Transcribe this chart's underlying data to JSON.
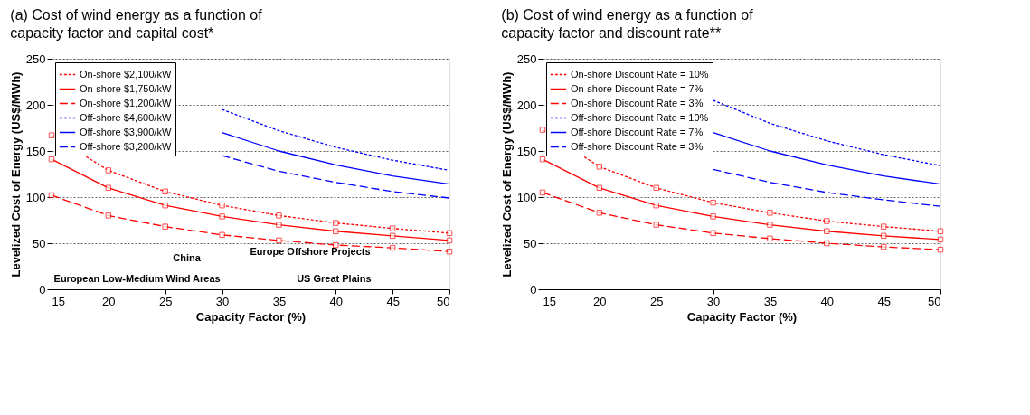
{
  "chart_data": [
    {
      "type": "line",
      "title": "(a) Cost of wind energy as a function of\ncapacity factor and capital cost*",
      "xlabel": "Capacity Factor (%)",
      "ylabel": "Levelized Cost of Energy (US$/MWh)",
      "xlim": [
        15,
        50
      ],
      "xticks": [
        15,
        20,
        25,
        30,
        35,
        40,
        45,
        50
      ],
      "ylim": [
        0,
        250
      ],
      "yticks": [
        0,
        50,
        100,
        150,
        200,
        250
      ],
      "grid": "y",
      "legend": "top left",
      "series": [
        {
          "name": "On-shore $2,100/kW",
          "color": "#ff0000",
          "line_style": "dotted",
          "marker": "square",
          "x": [
            15,
            20,
            25,
            30,
            35,
            40,
            45,
            50
          ],
          "values": [
            167,
            129,
            106,
            91,
            80,
            72,
            66,
            61
          ]
        },
        {
          "name": "On-shore $1,750/kW",
          "color": "#ff0000",
          "line_style": "solid",
          "marker": "square",
          "x": [
            15,
            20,
            25,
            30,
            35,
            40,
            45,
            50
          ],
          "values": [
            141,
            110,
            91,
            79,
            70,
            63,
            58,
            53
          ]
        },
        {
          "name": "On-shore $1,200/kW",
          "color": "#ff0000",
          "line_style": "dashed",
          "marker": "square",
          "x": [
            15,
            20,
            25,
            30,
            35,
            40,
            45,
            50
          ],
          "values": [
            102,
            80,
            68,
            59,
            53,
            48,
            45,
            41
          ]
        },
        {
          "name": "Off-shore $4,600/kW",
          "color": "#0000ff",
          "line_style": "dotted",
          "marker": "none",
          "x": [
            30,
            35,
            40,
            45,
            50
          ],
          "values": [
            195,
            172,
            154,
            140,
            129
          ]
        },
        {
          "name": "Off-shore $3,900/kW",
          "color": "#0000ff",
          "line_style": "solid",
          "marker": "none",
          "x": [
            30,
            35,
            40,
            45,
            50
          ],
          "values": [
            170,
            150,
            135,
            123,
            114
          ]
        },
        {
          "name": "Off-shore $3,200/kW",
          "color": "#0000ff",
          "line_style": "dashed",
          "marker": "none",
          "x": [
            30,
            35,
            40,
            45,
            50
          ],
          "values": [
            145,
            128,
            116,
            106,
            99
          ]
        }
      ],
      "annotations": [
        "China",
        "Europe Offshore Projects",
        "European Low-Medium Wind Areas",
        "US Great Plains"
      ]
    },
    {
      "type": "line",
      "title": "(b) Cost of wind energy as a function of\ncapacity factor and discount rate**",
      "xlabel": "Capacity Factor (%)",
      "ylabel": "Levelized Cost of Energy (US$/MWh)",
      "xlim": [
        15,
        50
      ],
      "xticks": [
        15,
        20,
        25,
        30,
        35,
        40,
        45,
        50
      ],
      "ylim": [
        0,
        250
      ],
      "yticks": [
        0,
        50,
        100,
        150,
        200,
        250
      ],
      "grid": "y",
      "legend": "top left",
      "series": [
        {
          "name": "On-shore Discount Rate = 10%",
          "color": "#ff0000",
          "line_style": "dotted",
          "marker": "square",
          "x": [
            15,
            20,
            25,
            30,
            35,
            40,
            45,
            50
          ],
          "values": [
            173,
            133,
            110,
            94,
            83,
            74,
            68,
            63
          ]
        },
        {
          "name": "On-shore Discount Rate = 7%",
          "color": "#ff0000",
          "line_style": "solid",
          "marker": "square",
          "x": [
            15,
            20,
            25,
            30,
            35,
            40,
            45,
            50
          ],
          "values": [
            141,
            110,
            91,
            79,
            70,
            63,
            58,
            54
          ]
        },
        {
          "name": "On-shore Discount Rate = 3%",
          "color": "#ff0000",
          "line_style": "dashed",
          "marker": "square",
          "x": [
            15,
            20,
            25,
            30,
            35,
            40,
            45,
            50
          ],
          "values": [
            105,
            83,
            70,
            61,
            55,
            50,
            46,
            43
          ]
        },
        {
          "name": "Off-shore Discount Rate = 10%",
          "color": "#0000ff",
          "line_style": "dotted",
          "marker": "none",
          "x": [
            30,
            35,
            40,
            45,
            50
          ],
          "values": [
            205,
            180,
            161,
            146,
            134
          ]
        },
        {
          "name": "Off-shore Discount Rate = 7%",
          "color": "#0000ff",
          "line_style": "solid",
          "marker": "none",
          "x": [
            30,
            35,
            40,
            45,
            50
          ],
          "values": [
            170,
            150,
            135,
            123,
            114
          ]
        },
        {
          "name": "Off-shore Discount Rate = 3%",
          "color": "#0000ff",
          "line_style": "dashed",
          "marker": "none",
          "x": [
            30,
            35,
            40,
            45,
            50
          ],
          "values": [
            130,
            116,
            105,
            97,
            90
          ]
        }
      ]
    }
  ]
}
